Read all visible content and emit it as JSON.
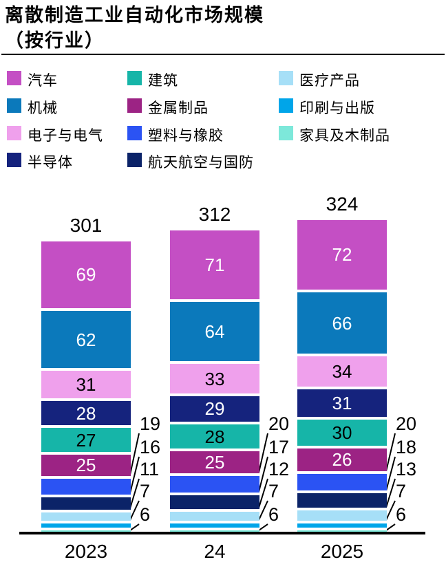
{
  "title": {
    "line1": "离散制造工业自动化市场规模",
    "line2": "（按行业）"
  },
  "chart_data": {
    "type": "bar",
    "stacked": true,
    "categories": [
      "2023",
      "24",
      "2025"
    ],
    "totals": [
      "301",
      "312",
      "324"
    ],
    "series": [
      {
        "name": "汽车",
        "color": "#c44fc4",
        "values": [
          69,
          71,
          72
        ],
        "label_style": "inside",
        "label_color": "#ffffff"
      },
      {
        "name": "机械",
        "color": "#0b79bb",
        "values": [
          62,
          64,
          66
        ],
        "label_style": "inside",
        "label_color": "#ffffff"
      },
      {
        "name": "电子与电气",
        "color": "#efa0ec",
        "values": [
          31,
          33,
          34
        ],
        "label_style": "inside",
        "label_color": "#000000"
      },
      {
        "name": "半导体",
        "color": "#15237d",
        "values": [
          28,
          29,
          31
        ],
        "label_style": "inside",
        "label_color": "#ffffff"
      },
      {
        "name": "建筑",
        "color": "#16b5a8",
        "values": [
          27,
          28,
          30
        ],
        "label_style": "inside",
        "label_color": "#000000"
      },
      {
        "name": "金属制品",
        "color": "#9c2384",
        "values": [
          25,
          25,
          26
        ],
        "label_style": "inside",
        "label_color": "#ffffff"
      },
      {
        "name": "塑料与橡胶",
        "color": "#2b53f3",
        "values": [
          19,
          20,
          20
        ],
        "label_style": "callout",
        "label_color": "#000000"
      },
      {
        "name": "航天航空与国防",
        "color": "#0b2368",
        "values": [
          16,
          17,
          18
        ],
        "label_style": "callout",
        "label_color": "#000000"
      },
      {
        "name": "医疗产品",
        "color": "#a6dff7",
        "values": [
          11,
          12,
          13
        ],
        "label_style": "callout",
        "label_color": "#000000"
      },
      {
        "name": "印刷与出版",
        "color": "#00a5e9",
        "values": [
          7,
          7,
          7
        ],
        "label_style": "callout",
        "label_color": "#000000"
      },
      {
        "name": "家具及木制品",
        "color": "#7de8da",
        "values": [
          6,
          6,
          6
        ],
        "label_style": "callout",
        "label_color": "#000000"
      }
    ],
    "legend_rows": [
      [
        "汽车",
        "建筑",
        "医疗产品"
      ],
      [
        "机械",
        "金属制品",
        "印刷与出版"
      ],
      [
        "电子与电气",
        "塑料与橡胶",
        "家具及木制品"
      ],
      [
        "半导体",
        "航天航空与国防"
      ]
    ],
    "legend_position": "top",
    "grid": false,
    "axis_color": "#000000"
  }
}
